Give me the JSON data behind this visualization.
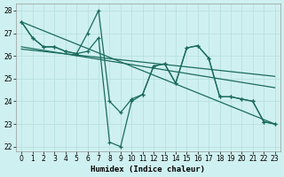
{
  "xlabel": "Humidex (Indice chaleur)",
  "bg_color": "#cff0f0",
  "grid_color": "#b8e0e0",
  "line_color": "#1a6b5a",
  "xlim": [
    -0.5,
    23.5
  ],
  "ylim": [
    21.8,
    28.3
  ],
  "yticks": [
    22,
    23,
    24,
    25,
    26,
    27,
    28
  ],
  "xticks": [
    0,
    1,
    2,
    3,
    4,
    5,
    6,
    7,
    8,
    9,
    10,
    11,
    12,
    13,
    14,
    15,
    16,
    17,
    18,
    19,
    20,
    21,
    22,
    23
  ],
  "curve1_x": [
    0,
    1,
    2,
    3,
    4,
    5,
    6,
    7,
    8,
    9,
    10,
    11,
    12,
    13,
    14,
    15,
    16,
    17,
    18,
    19,
    20,
    21,
    22,
    23
  ],
  "curve1_y": [
    27.5,
    26.8,
    26.4,
    26.4,
    26.2,
    26.1,
    27.0,
    28.0,
    24.0,
    23.5,
    24.1,
    24.3,
    25.55,
    25.65,
    24.8,
    26.35,
    26.45,
    25.9,
    24.2,
    24.2,
    24.1,
    24.0,
    23.1,
    23.0
  ],
  "curve2_x": [
    0,
    1,
    2,
    3,
    4,
    5,
    6,
    7,
    8,
    9,
    10,
    11,
    12,
    13,
    14,
    15,
    16,
    17,
    18,
    19,
    20,
    21,
    22,
    23
  ],
  "curve2_y": [
    27.5,
    26.8,
    26.4,
    26.4,
    26.2,
    26.1,
    26.2,
    26.8,
    22.2,
    22.0,
    24.0,
    24.3,
    25.55,
    25.65,
    24.8,
    26.35,
    26.45,
    25.9,
    24.2,
    24.2,
    24.1,
    24.0,
    23.1,
    23.0
  ],
  "line1_x": [
    0,
    23
  ],
  "line1_y": [
    27.5,
    23.0
  ],
  "line2_x": [
    0,
    23
  ],
  "line2_y": [
    26.4,
    24.6
  ],
  "line3_x": [
    0,
    23
  ],
  "line3_y": [
    26.3,
    25.1
  ]
}
